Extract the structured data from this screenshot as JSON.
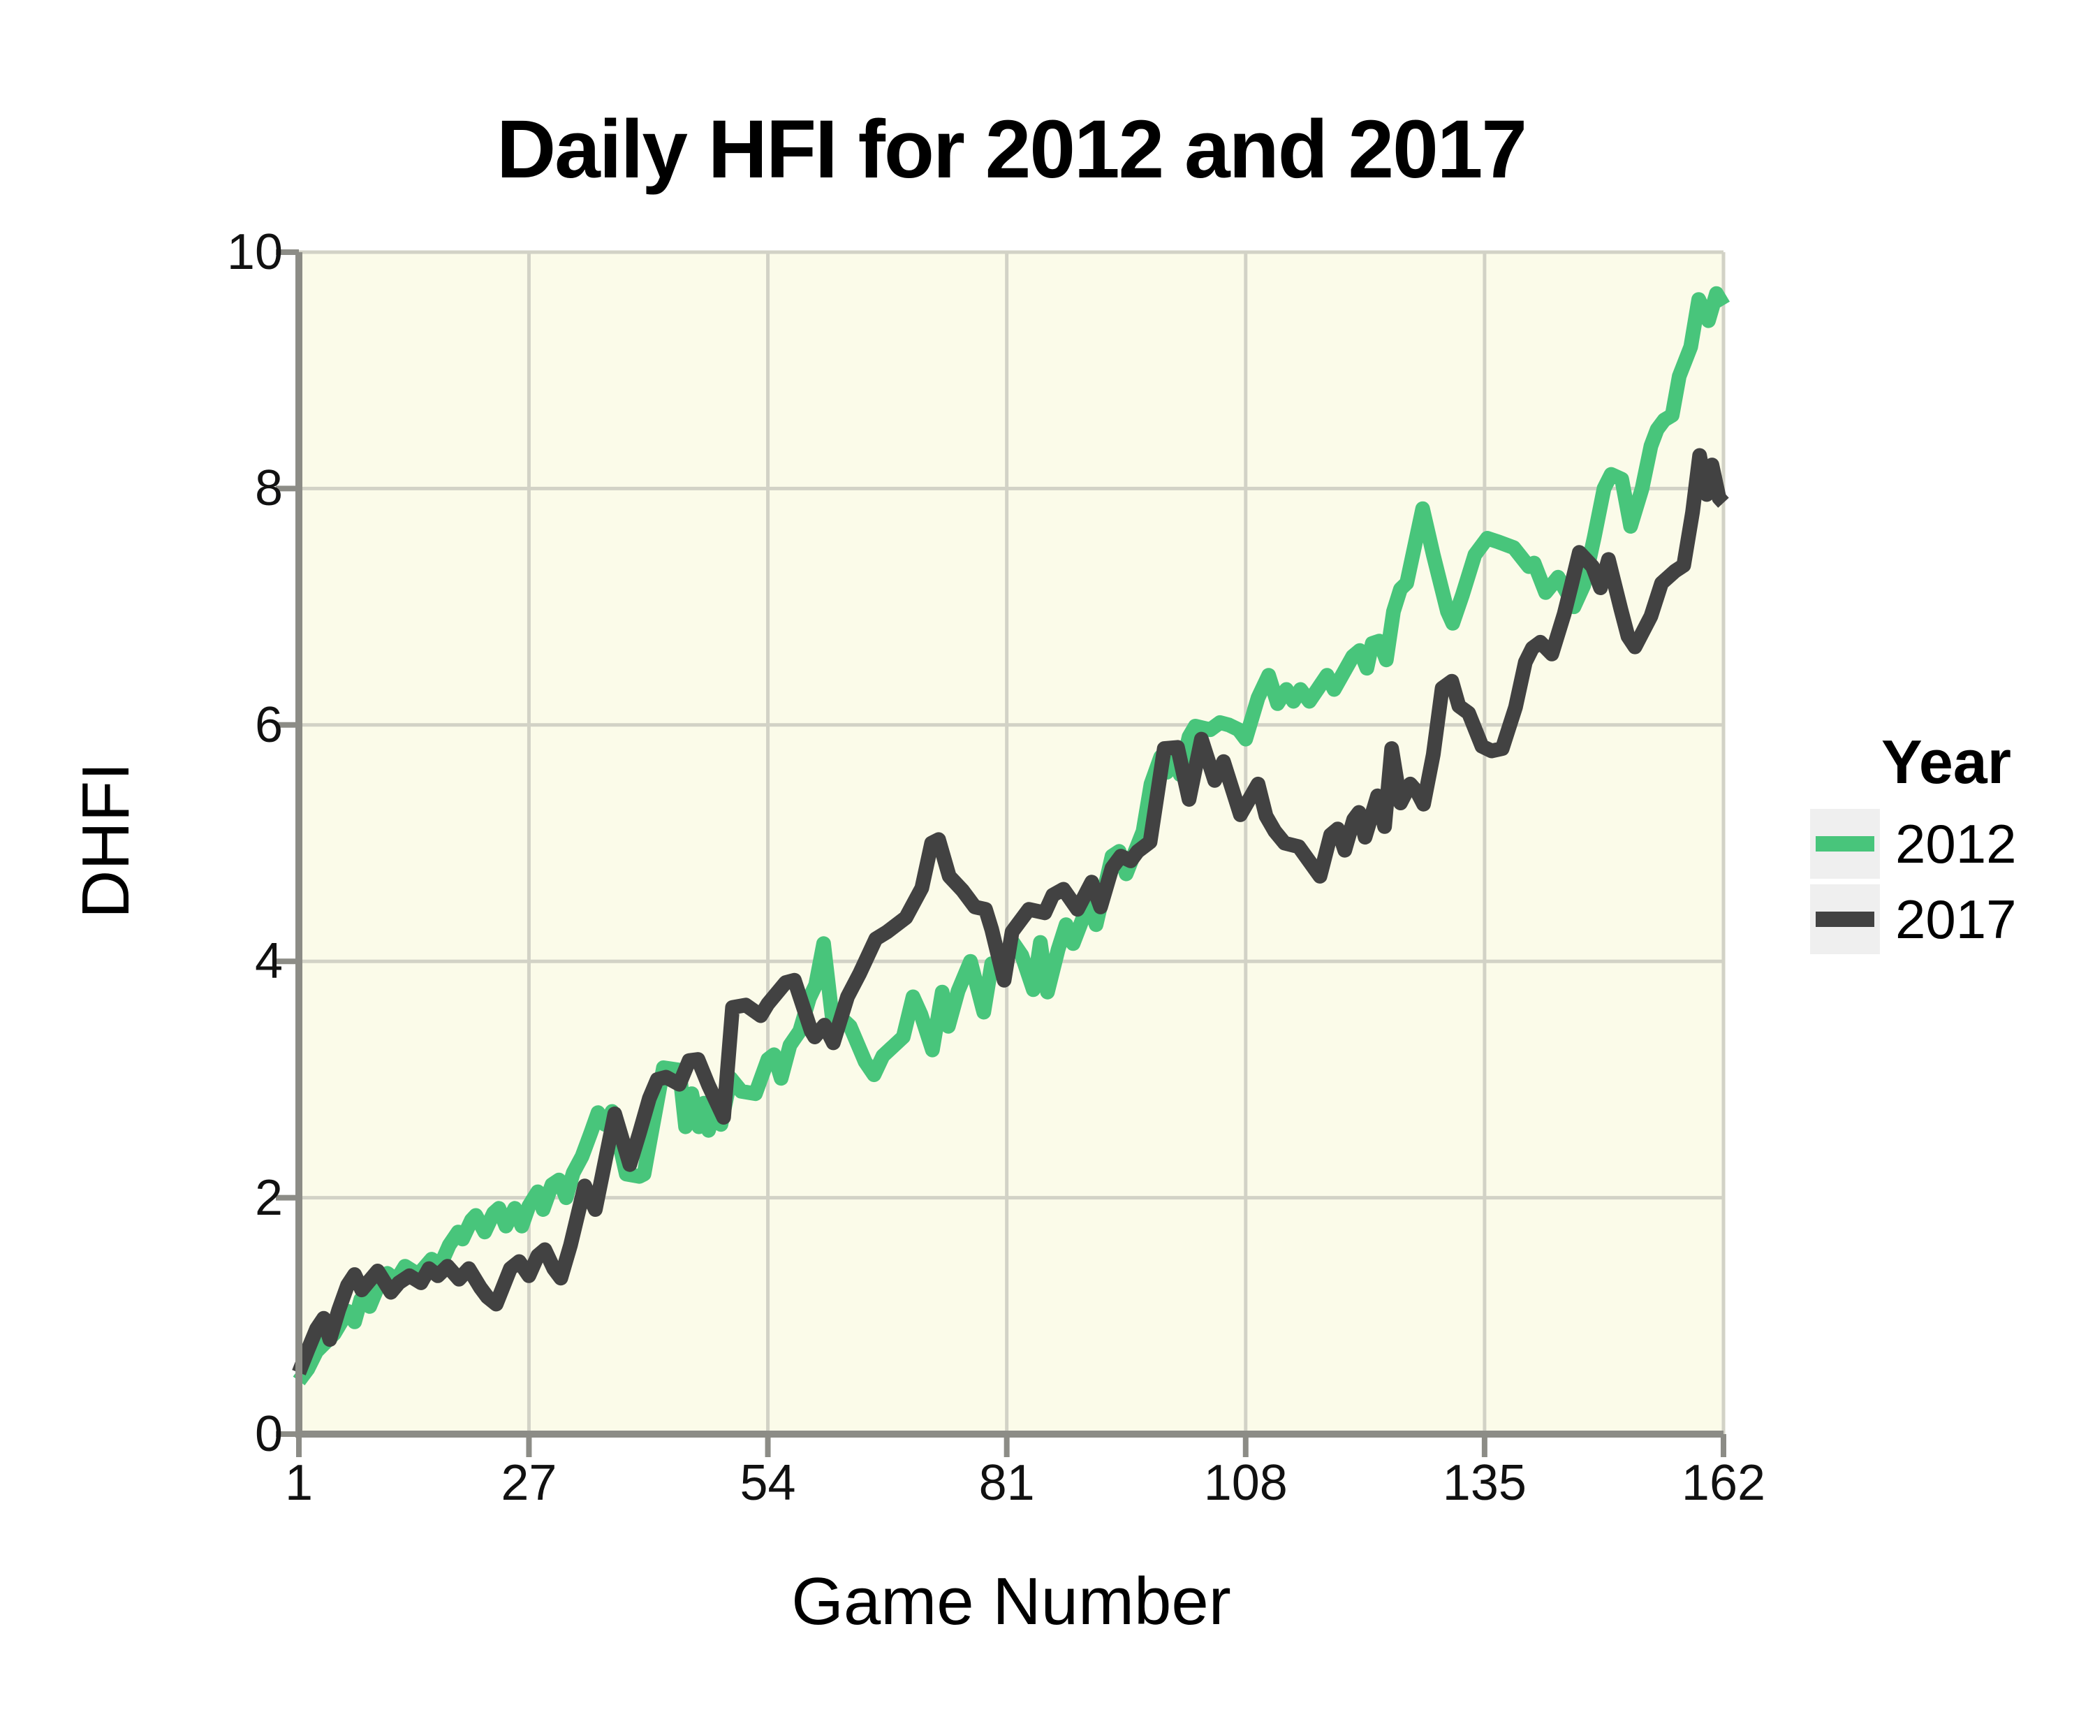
{
  "chart_data": {
    "type": "line",
    "title": "Daily HFI for 2012 and 2017",
    "xlabel": "Game Number",
    "ylabel": "DHFI",
    "legend_title": "Year",
    "legend_position": "right",
    "grid": true,
    "xlim": [
      1,
      162
    ],
    "ylim": [
      0,
      10
    ],
    "x_ticks": [
      1,
      27,
      54,
      81,
      108,
      135,
      162
    ],
    "y_ticks": [
      0,
      2,
      4,
      6,
      8,
      10
    ],
    "series": [
      {
        "name": "2012",
        "color": "#48C57B",
        "points": [
          [
            1,
            0.45
          ],
          [
            2,
            0.55
          ],
          [
            3,
            0.7
          ],
          [
            5,
            0.85
          ],
          [
            6.5,
            1.04
          ],
          [
            7.3,
            0.95
          ],
          [
            8,
            1.14
          ],
          [
            9,
            1.08
          ],
          [
            10,
            1.26
          ],
          [
            11,
            1.36
          ],
          [
            12,
            1.3
          ],
          [
            13,
            1.42
          ],
          [
            14.5,
            1.35
          ],
          [
            16,
            1.48
          ],
          [
            17,
            1.43
          ],
          [
            18,
            1.6
          ],
          [
            19,
            1.71
          ],
          [
            19.5,
            1.65
          ],
          [
            20.5,
            1.81
          ],
          [
            21,
            1.85
          ],
          [
            22,
            1.71
          ],
          [
            23,
            1.87
          ],
          [
            23.6,
            1.91
          ],
          [
            24.4,
            1.76
          ],
          [
            25.4,
            1.91
          ],
          [
            26.2,
            1.76
          ],
          [
            27,
            1.93
          ],
          [
            28,
            2.05
          ],
          [
            28.6,
            1.9
          ],
          [
            29.6,
            2.11
          ],
          [
            30.4,
            2.15
          ],
          [
            31.2,
            2.0
          ],
          [
            32,
            2.21
          ],
          [
            33,
            2.35
          ],
          [
            34,
            2.55
          ],
          [
            34.8,
            2.72
          ],
          [
            35.6,
            2.62
          ],
          [
            36.4,
            2.73
          ],
          [
            38,
            2.2
          ],
          [
            39.5,
            2.18
          ],
          [
            40,
            2.2
          ],
          [
            40.6,
            2.45
          ],
          [
            42.2,
            3.1
          ],
          [
            44,
            3.08
          ],
          [
            44.7,
            2.6
          ],
          [
            45.4,
            2.88
          ],
          [
            46.2,
            2.6
          ],
          [
            46.8,
            2.8
          ],
          [
            47.3,
            2.57
          ],
          [
            48.2,
            2.8
          ],
          [
            48.7,
            2.62
          ],
          [
            49.8,
            3.01
          ],
          [
            51,
            2.9
          ],
          [
            52.6,
            2.88
          ],
          [
            54,
            3.17
          ],
          [
            54.7,
            3.21
          ],
          [
            55.5,
            3.01
          ],
          [
            56.5,
            3.29
          ],
          [
            57.6,
            3.41
          ],
          [
            58.7,
            3.69
          ],
          [
            59.4,
            3.8
          ],
          [
            60.3,
            4.15
          ],
          [
            61.5,
            3.38
          ],
          [
            62.3,
            3.52
          ],
          [
            63.3,
            3.45
          ],
          [
            65,
            3.15
          ],
          [
            66,
            3.04
          ],
          [
            67,
            3.2
          ],
          [
            69.3,
            3.36
          ],
          [
            70.4,
            3.7
          ],
          [
            71.3,
            3.55
          ],
          [
            72.6,
            3.25
          ],
          [
            73.7,
            3.74
          ],
          [
            74.4,
            3.45
          ],
          [
            75.5,
            3.75
          ],
          [
            76.9,
            4.0
          ],
          [
            78.4,
            3.57
          ],
          [
            79.3,
            3.98
          ],
          [
            80.5,
            3.88
          ],
          [
            81.6,
            4.17
          ],
          [
            82.7,
            4.05
          ],
          [
            84,
            3.76
          ],
          [
            84.8,
            4.16
          ],
          [
            85.6,
            3.74
          ],
          [
            86.8,
            4.1
          ],
          [
            87.7,
            4.31
          ],
          [
            88.5,
            4.15
          ],
          [
            90.3,
            4.5
          ],
          [
            91.1,
            4.31
          ],
          [
            92.9,
            4.89
          ],
          [
            93.7,
            4.93
          ],
          [
            94.5,
            4.74
          ],
          [
            96.4,
            5.1
          ],
          [
            97.3,
            5.5
          ],
          [
            98.4,
            5.73
          ],
          [
            99.1,
            5.6
          ],
          [
            99.9,
            5.78
          ],
          [
            100.6,
            5.58
          ],
          [
            101.6,
            5.9
          ],
          [
            102.3,
            5.99
          ],
          [
            104,
            5.96
          ],
          [
            105.1,
            6.02
          ],
          [
            106.1,
            6.0
          ],
          [
            107.2,
            5.96
          ],
          [
            108,
            5.88
          ],
          [
            109.4,
            6.23
          ],
          [
            110.6,
            6.42
          ],
          [
            111.6,
            6.18
          ],
          [
            112.6,
            6.3
          ],
          [
            113.4,
            6.2
          ],
          [
            114.2,
            6.3
          ],
          [
            115.2,
            6.2
          ],
          [
            116.2,
            6.31
          ],
          [
            117.2,
            6.42
          ],
          [
            118,
            6.3
          ],
          [
            120.1,
            6.58
          ],
          [
            120.9,
            6.63
          ],
          [
            121.7,
            6.48
          ],
          [
            122.3,
            6.69
          ],
          [
            123.1,
            6.71
          ],
          [
            123.9,
            6.55
          ],
          [
            124.7,
            6.96
          ],
          [
            125.5,
            7.15
          ],
          [
            126.2,
            7.2
          ],
          [
            128,
            7.83
          ],
          [
            129.2,
            7.44
          ],
          [
            130.8,
            6.96
          ],
          [
            131.4,
            6.86
          ],
          [
            132.5,
            7.1
          ],
          [
            133.9,
            7.44
          ],
          [
            135.3,
            7.58
          ],
          [
            136.5,
            7.55
          ],
          [
            138.3,
            7.5
          ],
          [
            140,
            7.34
          ],
          [
            140.6,
            7.37
          ],
          [
            141.9,
            7.12
          ],
          [
            143.3,
            7.25
          ],
          [
            144.6,
            7.08
          ],
          [
            145.1,
            7.0
          ],
          [
            146.2,
            7.18
          ],
          [
            147.4,
            7.59
          ],
          [
            148.5,
            8.0
          ],
          [
            149.3,
            8.12
          ],
          [
            150.5,
            8.08
          ],
          [
            151.5,
            7.68
          ],
          [
            152.8,
            8.0
          ],
          [
            153.8,
            8.36
          ],
          [
            154.5,
            8.5
          ],
          [
            155.3,
            8.58
          ],
          [
            156.2,
            8.62
          ],
          [
            157,
            8.95
          ],
          [
            158.3,
            9.2
          ],
          [
            159.2,
            9.6
          ],
          [
            160.3,
            9.42
          ],
          [
            161.2,
            9.65
          ],
          [
            162,
            9.55
          ]
        ]
      },
      {
        "name": "2017",
        "color": "#424242",
        "points": [
          [
            1,
            0.52
          ],
          [
            2,
            0.71
          ],
          [
            3,
            0.89
          ],
          [
            3.8,
            0.98
          ],
          [
            4.5,
            0.8
          ],
          [
            5.5,
            1.05
          ],
          [
            6.5,
            1.26
          ],
          [
            7.3,
            1.35
          ],
          [
            8.1,
            1.22
          ],
          [
            9,
            1.3
          ],
          [
            9.9,
            1.38
          ],
          [
            11.4,
            1.2
          ],
          [
            12.3,
            1.28
          ],
          [
            13.5,
            1.34
          ],
          [
            14.8,
            1.28
          ],
          [
            15.7,
            1.4
          ],
          [
            16.7,
            1.34
          ],
          [
            17.8,
            1.42
          ],
          [
            19.1,
            1.31
          ],
          [
            20.2,
            1.4
          ],
          [
            21.5,
            1.24
          ],
          [
            22.3,
            1.16
          ],
          [
            23.3,
            1.1
          ],
          [
            24.9,
            1.4
          ],
          [
            25.9,
            1.46
          ],
          [
            27,
            1.34
          ],
          [
            28,
            1.51
          ],
          [
            28.8,
            1.56
          ],
          [
            29.8,
            1.4
          ],
          [
            30.6,
            1.32
          ],
          [
            31.7,
            1.6
          ],
          [
            33.3,
            2.1
          ],
          [
            34.5,
            1.9
          ],
          [
            36.7,
            2.71
          ],
          [
            38.4,
            2.28
          ],
          [
            39.5,
            2.55
          ],
          [
            40.6,
            2.84
          ],
          [
            41.5,
            3.0
          ],
          [
            42.5,
            3.02
          ],
          [
            44,
            2.96
          ],
          [
            45.1,
            3.16
          ],
          [
            46.1,
            3.17
          ],
          [
            47.3,
            2.95
          ],
          [
            49,
            2.68
          ],
          [
            50,
            3.61
          ],
          [
            51.5,
            3.63
          ],
          [
            53.2,
            3.54
          ],
          [
            54,
            3.64
          ],
          [
            56,
            3.82
          ],
          [
            57,
            3.84
          ],
          [
            58.9,
            3.41
          ],
          [
            59.3,
            3.36
          ],
          [
            60.4,
            3.46
          ],
          [
            61.4,
            3.31
          ],
          [
            63,
            3.7
          ],
          [
            64.4,
            3.9
          ],
          [
            66.2,
            4.19
          ],
          [
            67.5,
            4.25
          ],
          [
            69.6,
            4.37
          ],
          [
            71.4,
            4.62
          ],
          [
            72.5,
            5.0
          ],
          [
            73.3,
            5.03
          ],
          [
            74.5,
            4.72
          ],
          [
            76,
            4.6
          ],
          [
            77.4,
            4.46
          ],
          [
            78.6,
            4.44
          ],
          [
            79.3,
            4.27
          ],
          [
            80.7,
            3.84
          ],
          [
            81.6,
            4.25
          ],
          [
            83.5,
            4.44
          ],
          [
            85.3,
            4.41
          ],
          [
            86.2,
            4.56
          ],
          [
            87.4,
            4.61
          ],
          [
            89,
            4.44
          ],
          [
            90.6,
            4.67
          ],
          [
            91.6,
            4.46
          ],
          [
            92.9,
            4.79
          ],
          [
            93.9,
            4.89
          ],
          [
            95,
            4.85
          ],
          [
            95.8,
            4.93
          ],
          [
            97.2,
            5.01
          ],
          [
            98.8,
            5.8
          ],
          [
            100.3,
            5.81
          ],
          [
            101.6,
            5.37
          ],
          [
            103,
            5.88
          ],
          [
            104.5,
            5.53
          ],
          [
            105.5,
            5.69
          ],
          [
            107.4,
            5.24
          ],
          [
            109.4,
            5.5
          ],
          [
            110.3,
            5.23
          ],
          [
            111.3,
            5.1
          ],
          [
            112.4,
            5.0
          ],
          [
            114,
            4.97
          ],
          [
            116.4,
            4.72
          ],
          [
            117.6,
            5.07
          ],
          [
            118.4,
            5.12
          ],
          [
            119.2,
            4.94
          ],
          [
            120.2,
            5.2
          ],
          [
            120.8,
            5.26
          ],
          [
            121.5,
            5.05
          ],
          [
            122.9,
            5.4
          ],
          [
            123.7,
            5.14
          ],
          [
            124.5,
            5.8
          ],
          [
            125.5,
            5.34
          ],
          [
            126.6,
            5.5
          ],
          [
            127.4,
            5.43
          ],
          [
            128.1,
            5.33
          ],
          [
            129.2,
            5.75
          ],
          [
            130.2,
            6.31
          ],
          [
            131.3,
            6.37
          ],
          [
            132.1,
            6.16
          ],
          [
            133.2,
            6.1
          ],
          [
            134.7,
            5.82
          ],
          [
            135.8,
            5.78
          ],
          [
            137,
            5.8
          ],
          [
            138.5,
            6.15
          ],
          [
            139.6,
            6.53
          ],
          [
            140.4,
            6.65
          ],
          [
            141.3,
            6.7
          ],
          [
            142.6,
            6.6
          ],
          [
            144,
            6.94
          ],
          [
            144.8,
            7.18
          ],
          [
            145.7,
            7.46
          ],
          [
            147.2,
            7.34
          ],
          [
            148.1,
            7.16
          ],
          [
            149,
            7.4
          ],
          [
            150.4,
            6.98
          ],
          [
            151.2,
            6.75
          ],
          [
            152,
            6.66
          ],
          [
            153.8,
            6.92
          ],
          [
            155,
            7.2
          ],
          [
            156.5,
            7.3
          ],
          [
            157.5,
            7.35
          ],
          [
            158.5,
            7.8
          ],
          [
            159.3,
            8.28
          ],
          [
            160.1,
            7.95
          ],
          [
            160.7,
            8.2
          ],
          [
            161.5,
            7.92
          ],
          [
            162,
            7.88
          ]
        ]
      }
    ]
  },
  "styles": {
    "figure_bg": "#FFFFFF",
    "panel_bg": "#FBFBE9",
    "grid_color": "#D2D2C6",
    "axis_color": "#8C8C86",
    "text_color": "#111111",
    "legend_key_bg": "#EFEFEF",
    "line_width": 21
  }
}
